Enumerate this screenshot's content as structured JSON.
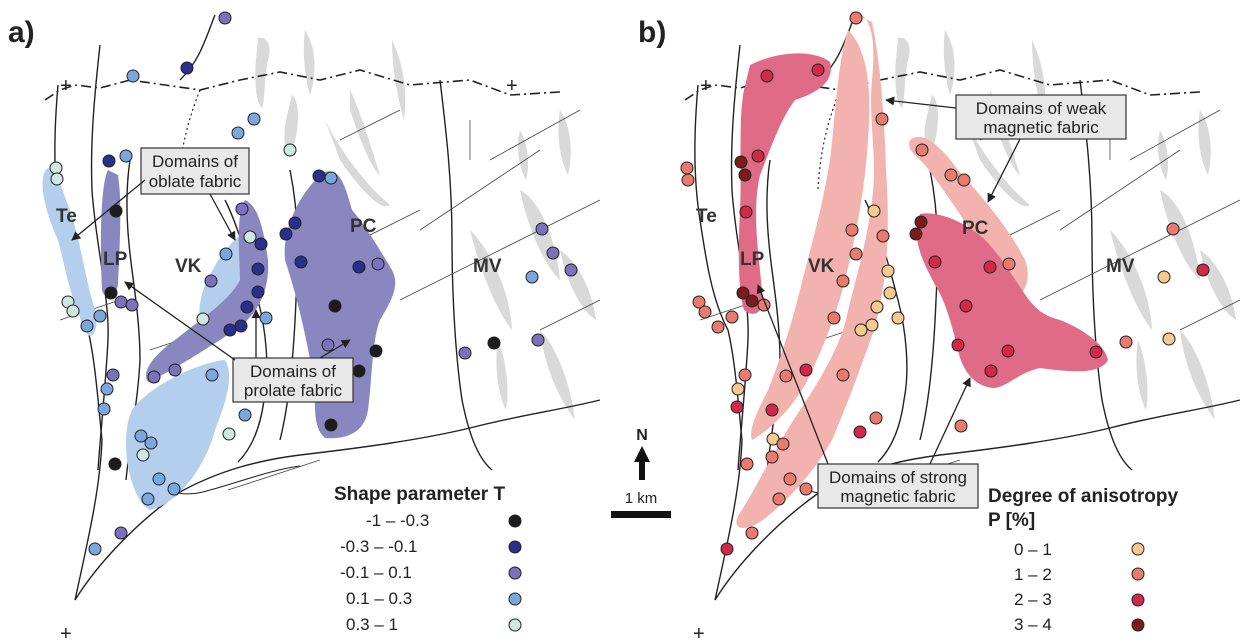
{
  "panels": [
    {
      "label": "a)",
      "units": [
        "Te",
        "LP",
        "VK",
        "PC",
        "MV"
      ],
      "callouts": {
        "oblate": [
          "Domains of",
          "oblate fabric"
        ],
        "prolate": [
          "Domains of",
          "prolate fabric"
        ]
      },
      "legend": {
        "title": "Shape parameter T",
        "classes": [
          {
            "label": "-1 – -0.3",
            "color": "#1c1c1c"
          },
          {
            "label": "-0.3 – -0.1",
            "color": "#2b2f8c"
          },
          {
            "label": "-0.1 – 0.1",
            "color": "#7b72bd"
          },
          {
            "label": "0.1 – 0.3",
            "color": "#7aa7dd"
          },
          {
            "label": "0.3 – 1",
            "color": "#cfe9e2"
          }
        ]
      }
    },
    {
      "label": "b)",
      "units": [
        "Te",
        "LP",
        "VK",
        "PC",
        "MV"
      ],
      "callouts": {
        "weak": [
          "Domains of weak",
          "magnetic fabric"
        ],
        "strong": [
          "Domains of strong",
          "magnetic fabric"
        ]
      },
      "legend": {
        "title": "Degree of anisotropy",
        "subtitle": "P [%]",
        "classes": [
          {
            "label": "0 – 1",
            "color": "#f7c88f"
          },
          {
            "label": "1 – 2",
            "color": "#ea7a6e"
          },
          {
            "label": "2 – 3",
            "color": "#d3284a"
          },
          {
            "label": "3 – 4",
            "color": "#7d1a1a"
          }
        ]
      }
    }
  ],
  "scale_bar": {
    "label": "1 km"
  },
  "north": {
    "label": "N"
  },
  "colors": {
    "oblate_domain": "#b4cfee",
    "prolate_domain": "#8a87c0",
    "weak_domain": "#f2b2ae",
    "strong_domain": "#e06b86",
    "geology_gray": "#d9d9d9"
  }
}
